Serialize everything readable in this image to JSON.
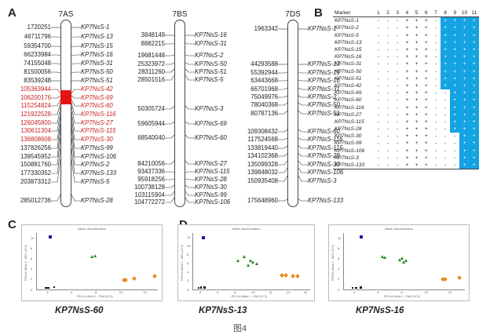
{
  "labels": {
    "A": "A",
    "B": "B",
    "C": "C",
    "D": "D"
  },
  "fig_caption": "图4",
  "chromosomes": [
    {
      "title": "7AS",
      "markers": [
        {
          "pos": "1720251",
          "name": "KP7NsS-1",
          "red": false
        },
        {
          "pos": "46711796",
          "name": "KP7NsS-13",
          "red": false
        },
        {
          "pos": "59354700",
          "name": "KP7NsS-15",
          "red": false
        },
        {
          "pos": "66233984",
          "name": "KP7NsS-16",
          "red": false
        },
        {
          "pos": "74155048",
          "name": "KP7NsS-31",
          "red": false
        },
        {
          "pos": "81500056",
          "name": "KP7NsS-50",
          "red": false
        },
        {
          "pos": "83539248",
          "name": "KP7NsS-51",
          "red": false
        },
        {
          "pos": "105363944",
          "name": "KP7NsS-42",
          "red": true
        },
        {
          "pos": "106200176",
          "name": "KP7NsS-69",
          "red": true
        },
        {
          "pos": "115254824",
          "name": "KP7NsS-60",
          "red": true
        },
        {
          "pos": "121922528",
          "name": "KP7NsS-116",
          "red": true
        },
        {
          "pos": "126045800",
          "name": "KP7NsS-27",
          "red": true
        },
        {
          "pos": "130611304",
          "name": "KP7NsS-115",
          "red": true
        },
        {
          "pos": "136808608",
          "name": "KP7NsS-30",
          "red": true
        },
        {
          "pos": "137826256",
          "name": "KP7NsS-99",
          "red": false
        },
        {
          "pos": "139545952",
          "name": "KP7NsS-106",
          "red": false
        },
        {
          "pos": "150881760",
          "name": "KP7NsS-2",
          "red": false
        },
        {
          "pos": "177330352",
          "name": "KP7NsS-133",
          "red": false
        },
        {
          "pos": "203873312",
          "name": "KP7NsS-5",
          "red": false
        },
        {
          "pos": "285012736",
          "name": "KP7NsS-28",
          "red": false
        }
      ]
    },
    {
      "title": "7BS",
      "markers": [
        {
          "pos": "3848149",
          "name": "KP7NsS-16"
        },
        {
          "pos": "8882215",
          "name": "KP7NsS-31"
        },
        {
          "pos": "19681448",
          "name": "KP7NsS-2"
        },
        {
          "pos": "25323972",
          "name": "KP7NsS-50"
        },
        {
          "pos": "28311260",
          "name": "KP7NsS-51"
        },
        {
          "pos": "28501516",
          "name": "KP7NsS-5"
        },
        {
          "pos": "50305724",
          "name": "KP7NsS-3"
        },
        {
          "pos": "59605944",
          "name": "KP7NsS-69"
        },
        {
          "pos": "68540040",
          "name": "KP7NsS-60"
        },
        {
          "pos": "84210056",
          "name": "KP7NsS-27"
        },
        {
          "pos": "93437336",
          "name": "KP7NsS-115"
        },
        {
          "pos": "95918256",
          "name": "KP7NsS-28"
        },
        {
          "pos": "100738128",
          "name": "KP7NsS-30"
        },
        {
          "pos": "103115904",
          "name": "KP7NsS-99"
        },
        {
          "pos": "104772272",
          "name": "KP7NsS-106"
        }
      ]
    },
    {
      "title": "7DS",
      "markers": [
        {
          "pos": "1963342",
          "name": "KP7NsS-1"
        },
        {
          "pos": "44293588",
          "name": "KP7NsS-13"
        },
        {
          "pos": "55392944",
          "name": "KP7NsS-15"
        },
        {
          "pos": "63443668",
          "name": "KP7NsS-16"
        },
        {
          "pos": "66701968",
          "name": "KP7NsS-31"
        },
        {
          "pos": "75049976",
          "name": "KP7NsS-2"
        },
        {
          "pos": "78040368",
          "name": "KP7NsS-50"
        },
        {
          "pos": "80787136",
          "name": "KP7NsS-51"
        },
        {
          "pos": "109308432",
          "name": "KP7NsS-60"
        },
        {
          "pos": "117524568",
          "name": "KP7NsS-116"
        },
        {
          "pos": "133819440",
          "name": "KP7NsS-115"
        },
        {
          "pos": "134102368",
          "name": "KP7NsS-28"
        },
        {
          "pos": "135099328",
          "name": "KP7NsS-30"
        },
        {
          "pos": "139848032",
          "name": "KP7NsS-106"
        },
        {
          "pos": "150935408",
          "name": "KP7NsS-3"
        },
        {
          "pos": "175648960",
          "name": "KP7NsS-133"
        }
      ]
    }
  ],
  "table": {
    "header_marker": "Marker",
    "columns": [
      "1",
      "2",
      "3",
      "4",
      "5",
      "6",
      "7",
      "8",
      "9",
      "10",
      "11"
    ],
    "highlight_color": "#14a3e3",
    "rows": [
      {
        "name": "KP7NsS-1",
        "cells": [
          "-",
          "-",
          "-",
          "+",
          "+",
          "+",
          "-",
          "+",
          "+",
          "+",
          "+"
        ]
      },
      {
        "name": "KP7NsS-2",
        "cells": [
          "-",
          "-",
          "-",
          "+",
          "+",
          "+",
          "-",
          "+",
          "+",
          "+",
          "+"
        ]
      },
      {
        "name": "KP7NsS-5",
        "cells": [
          "-",
          "-",
          "-",
          "+",
          "+",
          "+",
          "-",
          "+",
          "+",
          "+",
          "+"
        ]
      },
      {
        "name": "KP7NsS-13",
        "cells": [
          "-",
          "-",
          "-",
          "+",
          "+",
          "+",
          "-",
          "+",
          "+",
          "+",
          "+"
        ]
      },
      {
        "name": "KP7NsS-15",
        "cells": [
          "-",
          "-",
          "-",
          "+",
          "+",
          "+",
          "-",
          "+",
          "+",
          "+",
          "+"
        ]
      },
      {
        "name": "KP7NsS-16",
        "cells": [
          "-",
          "-",
          "-",
          "+",
          "+",
          "+",
          "-",
          "+",
          "+",
          "+",
          "+"
        ]
      },
      {
        "name": "KP7NsS-31",
        "cells": [
          "-",
          "-",
          "-",
          "+",
          "+",
          "+",
          "-",
          "+",
          "+",
          "+",
          "+"
        ]
      },
      {
        "name": "KP7NsS-50",
        "cells": [
          "-",
          "-",
          "-",
          "+",
          "+",
          "+",
          "-",
          "+",
          "+",
          "+",
          "+"
        ]
      },
      {
        "name": "KP7NsS-51",
        "cells": [
          "-",
          "-",
          "-",
          "+",
          "+",
          "+",
          "-",
          "+",
          "+",
          "+",
          "+"
        ]
      },
      {
        "name": "KP7NsS-42",
        "cells": [
          "-",
          "-",
          "-",
          "+",
          "+",
          "+",
          "-",
          "+",
          "+",
          "+",
          "+"
        ]
      },
      {
        "name": "KP7NsS-69",
        "cells": [
          "-",
          "-",
          "-",
          "+",
          "+",
          "+",
          "-",
          "-",
          "+",
          "+",
          "+"
        ]
      },
      {
        "name": "KP7NsS-60",
        "cells": [
          "-",
          "-",
          "-",
          "+",
          "+",
          "+",
          "-",
          "-",
          "+",
          "+",
          "+"
        ]
      },
      {
        "name": "KP7NsS-116",
        "cells": [
          "-",
          "-",
          "-",
          "+",
          "+",
          "+",
          "-",
          "-",
          "+",
          "+",
          "+"
        ]
      },
      {
        "name": "KP7NsS-27",
        "cells": [
          "-",
          "-",
          "-",
          "+",
          "+",
          "+",
          "-",
          "-",
          "+",
          "+",
          "+"
        ]
      },
      {
        "name": "KP7NsS-115",
        "cells": [
          "-",
          "-",
          "-",
          "+",
          "+",
          "+",
          "-",
          "-",
          "+",
          "+",
          "+"
        ]
      },
      {
        "name": "KP7NsS-28",
        "cells": [
          "-",
          "-",
          "-",
          "+",
          "+",
          "+",
          "-",
          "-",
          "+",
          "+",
          "+"
        ]
      },
      {
        "name": "KP7NsS-30",
        "cells": [
          "-",
          "-",
          "-",
          "+",
          "+",
          "+",
          "-",
          "-",
          "-",
          "+",
          "+"
        ]
      },
      {
        "name": "KP7NsS-99",
        "cells": [
          "-",
          "-",
          "-",
          "+",
          "+",
          "+",
          "-",
          "-",
          "-",
          "+",
          "+"
        ]
      },
      {
        "name": "KP7NsS-106",
        "cells": [
          "-",
          "-",
          "-",
          "+",
          "+",
          "+",
          "-",
          "-",
          "-",
          "+",
          "+"
        ]
      },
      {
        "name": "KP7NsS-3",
        "cells": [
          "-",
          "-",
          "-",
          "+",
          "+",
          "+",
          "-",
          "-",
          "-",
          "+",
          "+"
        ]
      },
      {
        "name": "KP7NsS-133",
        "cells": [
          "-",
          "-",
          "-",
          "+",
          "+",
          "+",
          "-",
          "-",
          "-",
          "+",
          "+"
        ]
      }
    ],
    "highlight_start_col": [
      7,
      7,
      7,
      7,
      7,
      7,
      7,
      7,
      7,
      7,
      8,
      8,
      8,
      8,
      8,
      8,
      9,
      9,
      9,
      9,
      9
    ]
  },
  "plots": [
    {
      "caption": "KP7NsS-60",
      "title": "Allelic discrimination",
      "xlabel": "RFU for Allele 1 - FAM (10^3)",
      "ylabel": "RFU for Allele 2 - HEX (10^3)",
      "xticks": [
        "4",
        "6",
        "8",
        "10",
        "12"
      ],
      "yticks": [
        "0",
        "2",
        "4",
        "6",
        "8",
        "10"
      ],
      "colors": {
        "blue": "#1a1aa6",
        "green": "#2a8a2a",
        "orange": "#e68a1a",
        "black": "#111111"
      },
      "points": [
        {
          "c": "blue",
          "x": 4.2,
          "y": 10.2
        },
        {
          "c": "green",
          "x": 7.6,
          "y": 6.4
        },
        {
          "c": "green",
          "x": 7.9,
          "y": 6.6
        },
        {
          "c": "orange",
          "x": 10.3,
          "y": 1.9
        },
        {
          "c": "orange",
          "x": 10.4,
          "y": 1.8
        },
        {
          "c": "orange",
          "x": 11.1,
          "y": 2.1
        },
        {
          "c": "orange",
          "x": 12.8,
          "y": 2.6
        },
        {
          "c": "black",
          "x": 3.8,
          "y": 0.3
        },
        {
          "c": "black",
          "x": 4.0,
          "y": 0.35
        },
        {
          "c": "black",
          "x": 4.5,
          "y": 0.45
        }
      ]
    },
    {
      "caption": "KP7NsS-13",
      "title": "Allelic discrimination",
      "xlabel": "RFU for Allele 1 - FAM (10^3)",
      "ylabel": "RFU for Allele 2 - HEX (10^3)",
      "xticks": [
        "4",
        "6",
        "8",
        "10",
        "12",
        "14",
        "16"
      ],
      "yticks": [
        "0",
        "2",
        "4",
        "6",
        "8",
        "10",
        "12"
      ],
      "colors": {
        "blue": "#1a1aa6",
        "green": "#2a8a2a",
        "orange": "#e68a1a",
        "black": "#111111"
      },
      "points": [
        {
          "c": "blue",
          "x": 4.3,
          "y": 12.0
        },
        {
          "c": "green",
          "x": 8.3,
          "y": 6.6
        },
        {
          "c": "green",
          "x": 9.0,
          "y": 7.6
        },
        {
          "c": "green",
          "x": 9.7,
          "y": 6.7
        },
        {
          "c": "green",
          "x": 10.0,
          "y": 6.3
        },
        {
          "c": "green",
          "x": 10.4,
          "y": 5.9
        },
        {
          "c": "green",
          "x": 9.4,
          "y": 5.6
        },
        {
          "c": "orange",
          "x": 13.3,
          "y": 3.2
        },
        {
          "c": "orange",
          "x": 13.8,
          "y": 3.3
        },
        {
          "c": "orange",
          "x": 14.6,
          "y": 3.1
        },
        {
          "c": "orange",
          "x": 15.1,
          "y": 3.1
        },
        {
          "c": "black",
          "x": 3.7,
          "y": 0.4
        },
        {
          "c": "black",
          "x": 4.0,
          "y": 0.45
        },
        {
          "c": "black",
          "x": 4.4,
          "y": 0.5
        }
      ]
    },
    {
      "caption": "KP7NsS-16",
      "title": "Allelic discrimination",
      "xlabel": "RFU for Allele 1 - FAM (10^3)",
      "ylabel": "RFU for Allele 2 - HEX (10^3)",
      "xticks": [
        "4",
        "6",
        "8",
        "10",
        "12"
      ],
      "yticks": [
        "0",
        "2",
        "4",
        "6",
        "8",
        "10"
      ],
      "colors": {
        "blue": "#1a1aa6",
        "green": "#2a8a2a",
        "orange": "#e68a1a",
        "black": "#111111"
      },
      "points": [
        {
          "c": "blue",
          "x": 4.5,
          "y": 10.3
        },
        {
          "c": "green",
          "x": 6.3,
          "y": 6.4
        },
        {
          "c": "green",
          "x": 6.5,
          "y": 6.2
        },
        {
          "c": "green",
          "x": 7.8,
          "y": 5.8
        },
        {
          "c": "green",
          "x": 8.0,
          "y": 6.1
        },
        {
          "c": "green",
          "x": 8.3,
          "y": 5.6
        },
        {
          "c": "green",
          "x": 8.1,
          "y": 5.3
        },
        {
          "c": "orange",
          "x": 11.4,
          "y": 2.0
        },
        {
          "c": "orange",
          "x": 11.6,
          "y": 2.0
        },
        {
          "c": "orange",
          "x": 12.8,
          "y": 2.3
        },
        {
          "c": "black",
          "x": 3.8,
          "y": 0.3
        },
        {
          "c": "black",
          "x": 4.1,
          "y": 0.35
        },
        {
          "c": "black",
          "x": 4.5,
          "y": 0.4
        }
      ]
    }
  ]
}
